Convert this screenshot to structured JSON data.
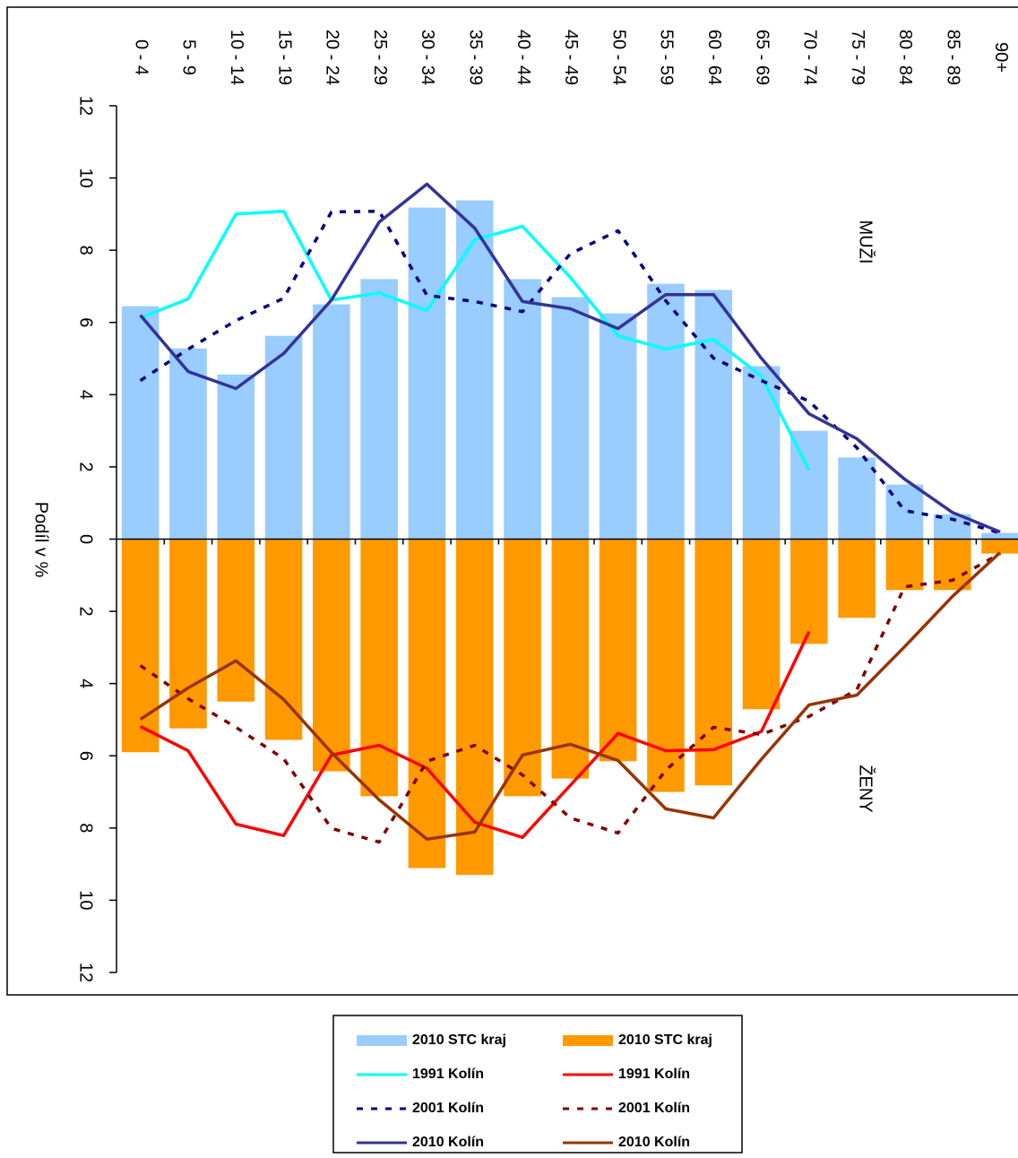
{
  "chart_data": {
    "type": "bar",
    "categories": [
      "0 - 4",
      "5 - 9",
      "10 - 14",
      "15 - 19",
      "20 - 24",
      "25 - 29",
      "30 - 34",
      "35 - 39",
      "40 - 44",
      "45 - 49",
      "50 - 54",
      "55 - 59",
      "60 - 64",
      "65 - 69",
      "70 - 74",
      "75 - 79",
      "80 - 84",
      "85 - 89",
      "90+"
    ],
    "ylabel": "Podíl v %",
    "annotations": [
      "MUŽI",
      "ŽENY"
    ],
    "ylim": [
      -12,
      12
    ],
    "yticks": [
      12,
      10,
      8,
      6,
      4,
      2,
      0,
      {
        "value": -2,
        "label": "2"
      },
      {
        "value": -4,
        "label": "4"
      },
      {
        "value": -6,
        "label": "6"
      },
      {
        "value": -8,
        "label": "8"
      },
      {
        "value": -10,
        "label": "10"
      },
      {
        "value": -12,
        "label": "12"
      }
    ],
    "series": [
      {
        "name": "2010 STC kraj",
        "kind": "bar",
        "color": "#99ccff",
        "values": [
          6.45,
          5.28,
          4.56,
          5.63,
          6.5,
          7.2,
          9.18,
          9.38,
          7.2,
          6.7,
          6.25,
          7.07,
          6.9,
          4.79,
          3.0,
          2.26,
          1.51,
          0.69,
          0.17
        ]
      },
      {
        "name": "2010 STC kraj",
        "kind": "bar",
        "color": "#ff9900",
        "values": [
          -5.9,
          -5.24,
          -4.5,
          -5.56,
          -6.43,
          -7.12,
          -9.11,
          -9.3,
          -7.12,
          -6.63,
          -6.15,
          -7.0,
          -6.82,
          -4.71,
          -2.9,
          -2.18,
          -1.41,
          -1.41,
          -0.4
        ]
      },
      {
        "name": "1991 Kolín",
        "kind": "line",
        "color": "#00ffff",
        "values": [
          6.13,
          6.65,
          9.0,
          9.08,
          6.62,
          6.82,
          6.33,
          8.29,
          8.66,
          7.25,
          5.63,
          5.26,
          5.53,
          4.52,
          1.91,
          null,
          null,
          null,
          null
        ]
      },
      {
        "name": "1991 Kolín",
        "kind": "line",
        "color": "#ff0000",
        "values": [
          -5.19,
          -5.86,
          -7.89,
          -8.21,
          -5.98,
          -5.71,
          -6.35,
          -7.84,
          -8.26,
          -6.82,
          -5.38,
          -5.86,
          -5.83,
          -5.33,
          -2.56,
          null,
          null,
          null,
          null
        ]
      },
      {
        "name": "2001 Kolín",
        "kind": "line",
        "dash": "dash",
        "color": "#000080",
        "values": [
          4.39,
          5.26,
          6.05,
          6.67,
          9.06,
          9.08,
          6.75,
          6.58,
          6.3,
          7.9,
          8.54,
          6.6,
          5.01,
          4.39,
          3.82,
          2.53,
          0.79,
          0.55,
          0.17
        ]
      },
      {
        "name": "2001 Kolín",
        "kind": "line",
        "dash": "dash",
        "color": "#800000",
        "values": [
          -3.5,
          -4.42,
          -5.21,
          -6.08,
          -8.01,
          -8.39,
          -6.15,
          -5.71,
          -6.53,
          -7.72,
          -8.14,
          -6.4,
          -5.21,
          -5.41,
          -4.91,
          -4.17,
          -1.32,
          -1.14,
          -0.4
        ]
      },
      {
        "name": "2010 Kolín",
        "kind": "line",
        "color": "#333399",
        "values": [
          6.2,
          4.64,
          4.17,
          5.14,
          6.62,
          8.78,
          9.83,
          8.61,
          6.58,
          6.38,
          5.83,
          6.77,
          6.77,
          5.01,
          3.47,
          2.78,
          1.66,
          0.74,
          0.2
        ]
      },
      {
        "name": "2010 Kolín",
        "kind": "line",
        "color": "#993300",
        "values": [
          -4.99,
          -4.12,
          -3.37,
          -4.44,
          -5.91,
          -7.22,
          -8.31,
          -8.11,
          -5.98,
          -5.68,
          -6.13,
          -7.47,
          -7.72,
          -6.1,
          -4.59,
          -4.32,
          -2.98,
          -1.59,
          -0.37
        ]
      }
    ]
  }
}
